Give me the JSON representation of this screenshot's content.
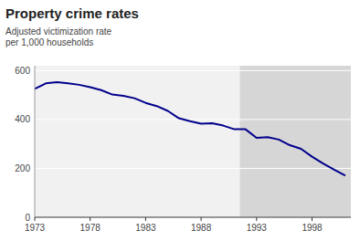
{
  "chart_data": {
    "type": "line",
    "title": "Property crime rates",
    "subtitle": "Adjusted victimization rate\nper 1,000 households",
    "x": [
      1973,
      1974,
      1975,
      1976,
      1977,
      1978,
      1979,
      1980,
      1981,
      1982,
      1983,
      1984,
      1985,
      1986,
      1987,
      1988,
      1989,
      1990,
      1991,
      1992,
      1993,
      1994,
      1995,
      1996,
      1997,
      1998,
      1999,
      2000,
      2001
    ],
    "values": [
      525,
      548,
      553,
      548,
      542,
      532,
      520,
      502,
      497,
      487,
      468,
      455,
      435,
      405,
      393,
      383,
      385,
      375,
      360,
      360,
      325,
      328,
      318,
      295,
      280,
      248,
      220,
      195,
      170
    ],
    "color": "#00008b",
    "xlim": [
      1973,
      2001.5
    ],
    "ylim": [
      0,
      620
    ],
    "xticks": [
      1973,
      1978,
      1983,
      1988,
      1993,
      1998
    ],
    "yticks": [
      0,
      200,
      400,
      600
    ],
    "shaded_from": 1991.5,
    "grid": true
  }
}
